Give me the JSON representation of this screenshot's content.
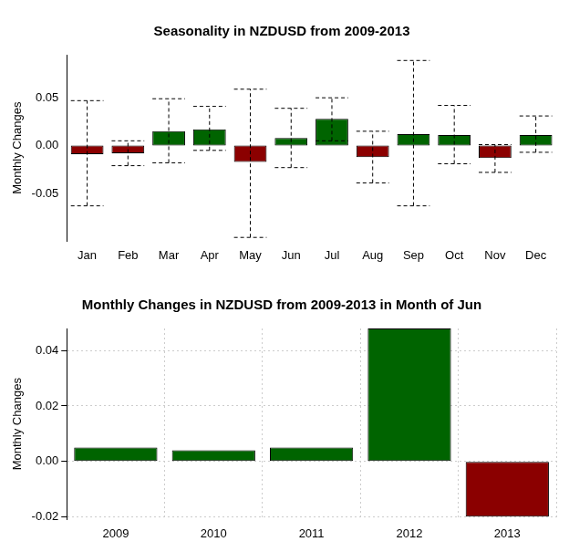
{
  "chart_data": [
    {
      "type": "bar",
      "title": "Seasonality in NZDUSD from 2009-2013",
      "y_label": "Monthly Changes",
      "categories": [
        "Jan",
        "Feb",
        "Mar",
        "Apr",
        "May",
        "Jun",
        "Jul",
        "Aug",
        "Sep",
        "Oct",
        "Nov",
        "Dec"
      ],
      "values": [
        -0.009,
        -0.008,
        0.015,
        0.017,
        -0.017,
        0.008,
        0.028,
        -0.012,
        0.012,
        0.011,
        -0.013,
        0.011
      ],
      "low": [
        -0.063,
        -0.021,
        -0.018,
        -0.005,
        -0.096,
        -0.023,
        0.005,
        -0.039,
        -0.063,
        -0.019,
        -0.028,
        -0.007
      ],
      "high": [
        0.047,
        0.005,
        0.049,
        0.041,
        0.059,
        0.039,
        0.05,
        0.015,
        0.089,
        0.042,
        0.001,
        0.031
      ],
      "colors": [
        "#8b0000",
        "#8b0000",
        "#006400",
        "#006400",
        "#8b0000",
        "#006400",
        "#006400",
        "#8b0000",
        "#006400",
        "#006400",
        "#8b0000",
        "#006400"
      ],
      "ylim": [
        -0.1,
        0.095
      ],
      "yticks": [
        -0.05,
        {
          "value": 0,
          "label": "0.00"
        },
        0.05
      ],
      "grid": false
    },
    {
      "type": "bar",
      "title": "Monthly Changes in NZDUSD from 2009-2013 in Month of Jun",
      "y_label": "Monthly Changes",
      "categories": [
        "2009",
        "2010",
        "2011",
        "2012",
        "2013"
      ],
      "values": [
        0.005,
        0.004,
        0.005,
        0.048,
        -0.02
      ],
      "colors": [
        "#006400",
        "#006400",
        "#006400",
        "#006400",
        "#8b0000"
      ],
      "ylim": [
        -0.021,
        0.048
      ],
      "yticks": [
        -0.02,
        {
          "value": 0,
          "label": "0.00"
        },
        0.02,
        0.04
      ],
      "grid": true
    }
  ]
}
